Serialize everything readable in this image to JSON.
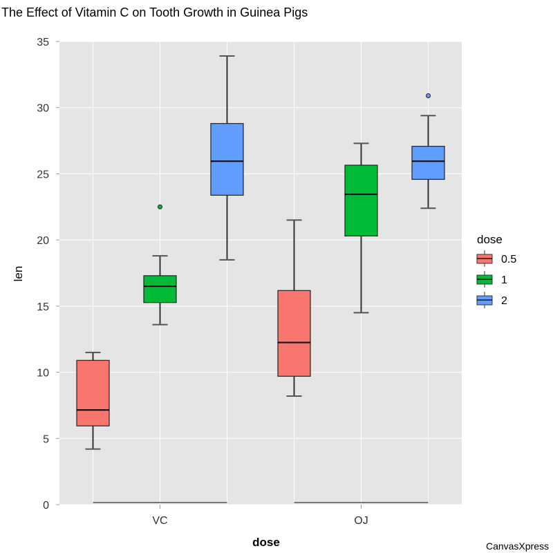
{
  "chart_data": {
    "type": "boxplot",
    "title": "The Effect of Vitamin C on Tooth Growth in Guinea Pigs",
    "xlabel": "dose",
    "ylabel": "len",
    "ylim": [
      0,
      35
    ],
    "yticks": [
      0,
      5,
      10,
      15,
      20,
      25,
      30,
      35
    ],
    "grid": true,
    "categories": [
      "VC",
      "OJ"
    ],
    "legend": {
      "title": "dose",
      "placement": "right",
      "entries": [
        {
          "label": "0.5",
          "color": "#F8766D"
        },
        {
          "label": "1",
          "color": "#00BA38"
        },
        {
          "label": "2",
          "color": "#619CFF"
        }
      ]
    },
    "series": [
      {
        "name": "0.5",
        "color": "#F8766D",
        "values": [
          {
            "category": "VC",
            "low": 4.2,
            "q1": 5.95,
            "median": 7.15,
            "q3": 10.9,
            "high": 11.5,
            "outliers": []
          },
          {
            "category": "OJ",
            "low": 8.2,
            "q1": 9.7,
            "median": 12.25,
            "q3": 16.18,
            "high": 21.5,
            "outliers": []
          }
        ]
      },
      {
        "name": "1",
        "color": "#00BA38",
        "values": [
          {
            "category": "VC",
            "low": 13.6,
            "q1": 15.27,
            "median": 16.5,
            "q3": 17.3,
            "high": 18.8,
            "outliers": [
              22.5
            ]
          },
          {
            "category": "OJ",
            "low": 14.5,
            "q1": 20.3,
            "median": 23.45,
            "q3": 25.65,
            "high": 27.3,
            "outliers": []
          }
        ]
      },
      {
        "name": "2",
        "color": "#619CFF",
        "values": [
          {
            "category": "VC",
            "low": 18.5,
            "q1": 23.38,
            "median": 25.95,
            "q3": 28.8,
            "high": 33.9,
            "outliers": []
          },
          {
            "category": "OJ",
            "low": 22.4,
            "q1": 24.58,
            "median": 25.95,
            "q3": 27.08,
            "high": 29.4,
            "outliers": [
              30.9
            ]
          }
        ]
      }
    ]
  },
  "credit": "CanvasXpress"
}
